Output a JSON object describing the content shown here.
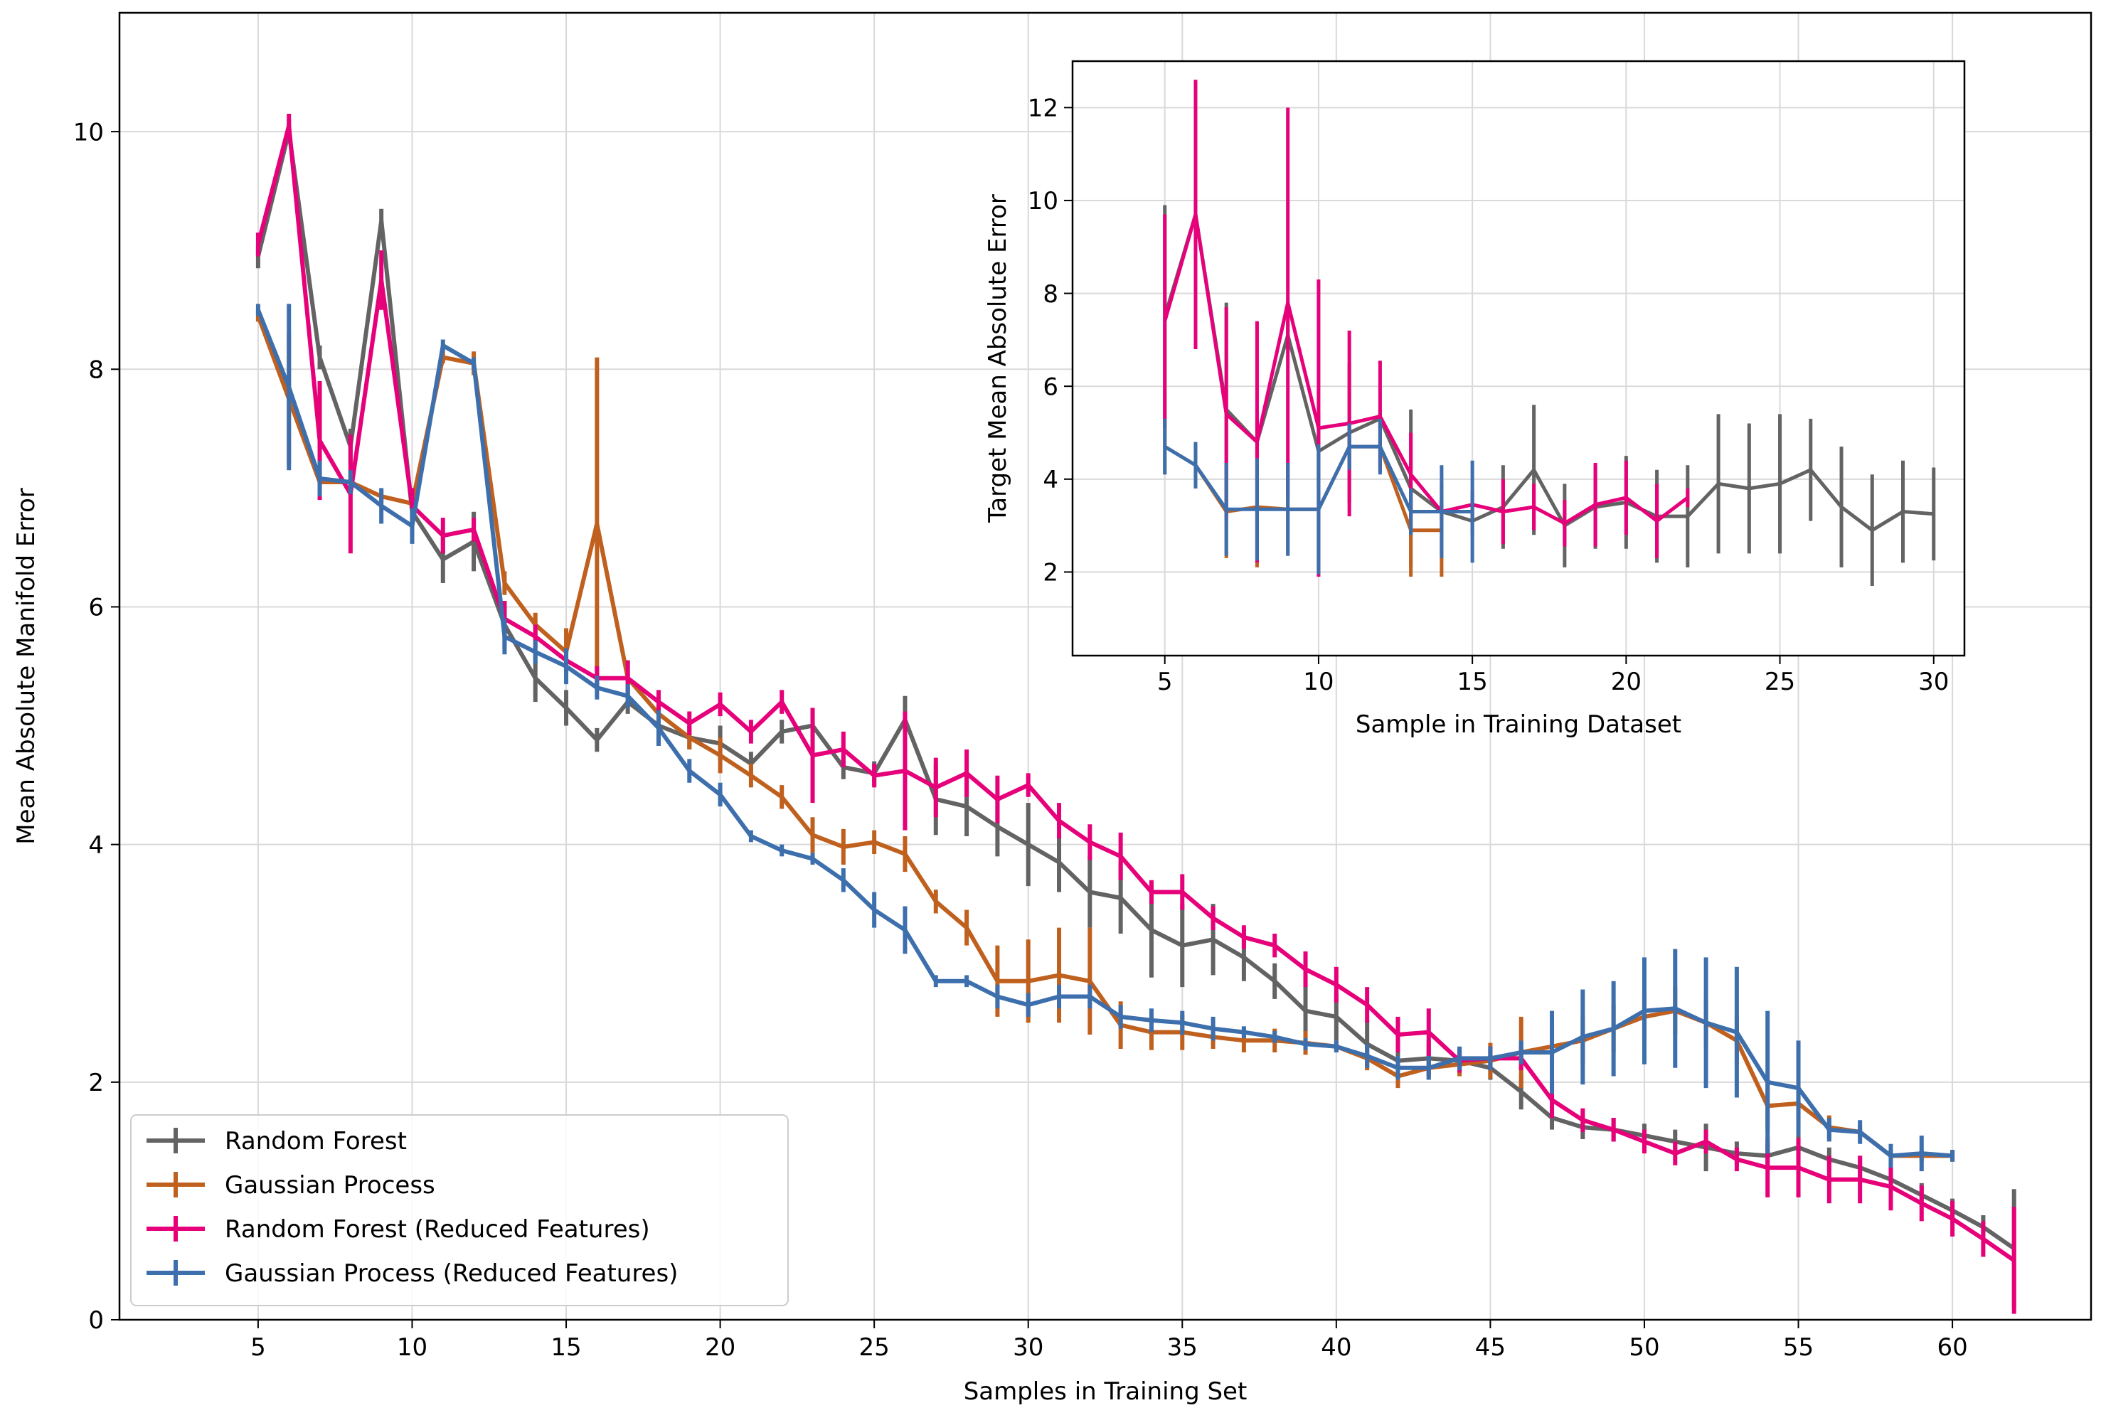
{
  "chart_data": [
    {
      "type": "line",
      "title": "",
      "xlabel": "Samples in Training Set",
      "ylabel": "Mean Absolute Manifold Error",
      "xlim": [
        0.5,
        64.5
      ],
      "ylim": [
        0,
        11
      ],
      "xticks": [
        5,
        10,
        15,
        20,
        25,
        30,
        35,
        40,
        45,
        50,
        55,
        60
      ],
      "yticks": [
        0,
        2,
        4,
        6,
        8,
        10
      ],
      "grid": true,
      "legend_position": "bottom-left",
      "series": [
        {
          "name": "Random Forest",
          "color": "#636363",
          "x": [
            5,
            6,
            7,
            8,
            9,
            10,
            11,
            12,
            13,
            14,
            15,
            16,
            17,
            18,
            19,
            20,
            21,
            22,
            23,
            24,
            25,
            26,
            27,
            28,
            29,
            30,
            31,
            32,
            33,
            34,
            35,
            36,
            37,
            38,
            39,
            40,
            41,
            42,
            43,
            44,
            45,
            46,
            47,
            48,
            49,
            50,
            51,
            52,
            53,
            54,
            55,
            56,
            57,
            58,
            59,
            60,
            61,
            62
          ],
          "y": [
            8.95,
            10.0,
            8.1,
            7.35,
            9.25,
            6.8,
            6.4,
            6.55,
            5.85,
            5.4,
            5.15,
            4.88,
            5.2,
            5.0,
            4.9,
            4.85,
            4.68,
            4.95,
            5.0,
            4.65,
            4.6,
            5.05,
            4.38,
            4.32,
            4.15,
            4.0,
            3.85,
            3.6,
            3.55,
            3.28,
            3.15,
            3.2,
            3.05,
            2.85,
            2.6,
            2.55,
            2.32,
            2.18,
            2.2,
            2.18,
            2.12,
            1.92,
            1.7,
            1.62,
            1.6,
            1.55,
            1.5,
            1.45,
            1.4,
            1.38,
            1.45,
            1.35,
            1.28,
            1.18,
            1.05,
            0.92,
            0.78,
            0.6
          ],
          "err": [
            0.1,
            0.1,
            0.1,
            0.15,
            0.1,
            0.2,
            0.2,
            0.25,
            0.2,
            0.2,
            0.15,
            0.1,
            0.1,
            0.15,
            0.1,
            0.15,
            0.1,
            0.1,
            0.15,
            0.1,
            0.1,
            0.2,
            0.3,
            0.25,
            0.25,
            0.35,
            0.25,
            0.3,
            0.3,
            0.4,
            0.35,
            0.3,
            0.2,
            0.15,
            0.3,
            0.2,
            0.2,
            0.15,
            0.15,
            0.1,
            0.1,
            0.15,
            0.1,
            0.1,
            0.1,
            0.1,
            0.1,
            0.2,
            0.1,
            0.1,
            0.1,
            0.1,
            0.1,
            0.1,
            0.1,
            0.1,
            0.1,
            0.5
          ]
        },
        {
          "name": "Gaussian Process",
          "color": "#c0601e",
          "x": [
            5,
            6,
            7,
            8,
            9,
            10,
            11,
            12,
            13,
            14,
            15,
            16,
            17,
            18,
            19,
            20,
            21,
            22,
            23,
            24,
            25,
            26,
            27,
            28,
            29,
            30,
            31,
            32,
            33,
            34,
            35,
            36,
            37,
            38,
            39,
            40,
            41,
            42,
            43,
            44,
            45,
            46,
            47,
            48,
            49,
            50,
            51,
            52,
            53,
            54,
            55,
            56,
            57,
            58,
            59,
            60
          ],
          "y": [
            8.45,
            7.75,
            7.05,
            7.05,
            6.93,
            6.87,
            8.1,
            8.05,
            6.2,
            5.85,
            5.62,
            6.7,
            5.4,
            5.1,
            4.9,
            4.75,
            4.58,
            4.4,
            4.08,
            3.98,
            4.02,
            3.92,
            3.52,
            3.3,
            2.85,
            2.85,
            2.9,
            2.85,
            2.48,
            2.42,
            2.42,
            2.38,
            2.35,
            2.35,
            2.33,
            2.3,
            2.2,
            2.05,
            2.12,
            2.15,
            2.18,
            2.25,
            2.3,
            2.35,
            2.45,
            2.55,
            2.6,
            2.5,
            2.35,
            1.8,
            1.82,
            1.62,
            1.58,
            1.38,
            1.38,
            1.38
          ],
          "err": [
            0.05,
            0.55,
            0.1,
            0.1,
            0.05,
            0.1,
            0.05,
            0.1,
            0.1,
            0.1,
            0.2,
            1.4,
            0.15,
            0.1,
            0.1,
            0.15,
            0.1,
            0.1,
            0.15,
            0.15,
            0.1,
            0.15,
            0.1,
            0.15,
            0.3,
            0.35,
            0.4,
            0.45,
            0.2,
            0.15,
            0.15,
            0.1,
            0.1,
            0.1,
            0.1,
            0.05,
            0.1,
            0.1,
            0.1,
            0.1,
            0.15,
            0.3,
            0.15,
            0.2,
            0.2,
            0.2,
            0.2,
            0.2,
            0.2,
            0.2,
            0.15,
            0.1,
            0.05,
            0.05,
            0.05,
            0.05
          ]
        },
        {
          "name": "Random Forest (Reduced Features)",
          "color": "#e6007a",
          "x": [
            5,
            6,
            7,
            8,
            9,
            10,
            11,
            12,
            13,
            14,
            15,
            16,
            17,
            18,
            19,
            20,
            21,
            22,
            23,
            24,
            25,
            26,
            27,
            28,
            29,
            30,
            31,
            32,
            33,
            34,
            35,
            36,
            37,
            38,
            39,
            40,
            41,
            42,
            43,
            44,
            45,
            46,
            47,
            48,
            49,
            50,
            51,
            52,
            53,
            54,
            55,
            56,
            57,
            58,
            59,
            60,
            61,
            62
          ],
          "y": [
            9.05,
            10.05,
            7.4,
            6.95,
            8.75,
            6.85,
            6.6,
            6.65,
            5.9,
            5.75,
            5.55,
            5.4,
            5.4,
            5.2,
            5.02,
            5.18,
            4.95,
            5.2,
            4.75,
            4.8,
            4.58,
            4.62,
            4.48,
            4.6,
            4.38,
            4.5,
            4.2,
            4.02,
            3.9,
            3.6,
            3.6,
            3.38,
            3.22,
            3.15,
            2.95,
            2.82,
            2.65,
            2.4,
            2.42,
            2.18,
            2.2,
            2.2,
            1.85,
            1.68,
            1.6,
            1.5,
            1.4,
            1.5,
            1.35,
            1.28,
            1.28,
            1.18,
            1.18,
            1.12,
            0.98,
            0.85,
            0.68,
            0.5
          ],
          "err": [
            0.1,
            0.1,
            0.5,
            0.5,
            0.25,
            0.15,
            0.15,
            0.1,
            0.15,
            0.1,
            0.1,
            0.1,
            0.15,
            0.1,
            0.1,
            0.1,
            0.1,
            0.1,
            0.4,
            0.15,
            0.1,
            0.5,
            0.25,
            0.2,
            0.2,
            0.1,
            0.15,
            0.15,
            0.2,
            0.1,
            0.15,
            0.1,
            0.1,
            0.1,
            0.15,
            0.15,
            0.15,
            0.15,
            0.2,
            0.1,
            0.1,
            0.1,
            0.15,
            0.1,
            0.1,
            0.1,
            0.1,
            0.1,
            0.1,
            0.25,
            0.25,
            0.2,
            0.2,
            0.2,
            0.15,
            0.15,
            0.15,
            0.45
          ]
        },
        {
          "name": "Gaussian Process (Reduced Features)",
          "color": "#3d6fad",
          "x": [
            5,
            6,
            7,
            8,
            9,
            10,
            11,
            12,
            13,
            14,
            15,
            16,
            17,
            18,
            19,
            20,
            21,
            22,
            23,
            24,
            25,
            26,
            27,
            28,
            29,
            30,
            31,
            32,
            33,
            34,
            35,
            36,
            37,
            38,
            39,
            40,
            41,
            42,
            43,
            44,
            45,
            46,
            47,
            48,
            49,
            50,
            51,
            52,
            53,
            54,
            55,
            56,
            57,
            58,
            59,
            60
          ],
          "y": [
            8.5,
            7.85,
            7.08,
            7.05,
            6.85,
            6.68,
            8.2,
            8.05,
            5.75,
            5.62,
            5.5,
            5.32,
            5.25,
            4.98,
            4.62,
            4.42,
            4.07,
            3.95,
            3.88,
            3.7,
            3.45,
            3.28,
            2.85,
            2.85,
            2.72,
            2.65,
            2.72,
            2.72,
            2.55,
            2.52,
            2.5,
            2.45,
            2.42,
            2.38,
            2.32,
            2.3,
            2.22,
            2.12,
            2.12,
            2.2,
            2.2,
            2.25,
            2.25,
            2.38,
            2.45,
            2.6,
            2.62,
            2.5,
            2.42,
            2.0,
            1.95,
            1.6,
            1.58,
            1.38,
            1.4,
            1.38
          ],
          "err": [
            0.05,
            0.7,
            0.15,
            0.1,
            0.15,
            0.15,
            0.05,
            0.05,
            0.15,
            0.1,
            0.15,
            0.1,
            0.1,
            0.15,
            0.1,
            0.1,
            0.05,
            0.05,
            0.05,
            0.1,
            0.15,
            0.2,
            0.05,
            0.05,
            0.1,
            0.1,
            0.1,
            0.1,
            0.1,
            0.1,
            0.1,
            0.1,
            0.05,
            0.05,
            0.05,
            0.05,
            0.1,
            0.1,
            0.1,
            0.1,
            0.1,
            0.1,
            0.35,
            0.4,
            0.4,
            0.45,
            0.5,
            0.55,
            0.55,
            0.6,
            0.4,
            0.1,
            0.1,
            0.1,
            0.15,
            0.05
          ]
        }
      ]
    },
    {
      "type": "line",
      "title": "",
      "xlabel": "Sample in Training Dataset",
      "ylabel": "Target Mean Absolute Error",
      "xlim": [
        2,
        31
      ],
      "ylim": [
        0.2,
        13.0
      ],
      "xticks": [
        5,
        10,
        15,
        20,
        25,
        30
      ],
      "yticks": [
        2,
        4,
        6,
        8,
        10,
        12
      ],
      "grid": true,
      "series": [
        {
          "name": "Random Forest",
          "color": "#636363",
          "x": [
            5,
            6,
            7,
            8,
            9,
            10,
            11,
            12,
            13,
            14,
            15,
            16,
            17,
            18,
            19,
            20,
            21,
            22,
            23,
            24,
            25,
            26,
            27,
            28,
            29,
            30
          ],
          "y": [
            7.5,
            9.7,
            5.5,
            4.8,
            7.1,
            4.6,
            5.0,
            5.3,
            3.8,
            3.3,
            3.1,
            3.4,
            4.2,
            3.0,
            3.4,
            3.5,
            3.2,
            3.2,
            3.9,
            3.8,
            3.9,
            4.2,
            3.4,
            2.9,
            3.3,
            3.25
          ],
          "err": [
            2.4,
            0.3,
            2.3,
            0.5,
            0.3,
            0.8,
            1.5,
            0.2,
            1.7,
            0.2,
            0.3,
            0.9,
            1.4,
            0.9,
            0.9,
            1.0,
            1.0,
            1.1,
            1.5,
            1.4,
            1.5,
            1.1,
            1.3,
            1.2,
            1.1,
            1.0
          ]
        },
        {
          "name": "Gaussian Process",
          "color": "#c0601e",
          "x": [
            5,
            6,
            7,
            8,
            9,
            10,
            11,
            12,
            13,
            14
          ],
          "y": [
            4.7,
            4.3,
            3.3,
            3.4,
            3.35,
            3.35,
            4.7,
            4.7,
            2.9,
            2.9
          ],
          "err": [
            0.6,
            0.5,
            1.0,
            1.3,
            1.0,
            1.3,
            0.5,
            0.5,
            1.0,
            1.0
          ]
        },
        {
          "name": "Random Forest (Reduced Features)",
          "color": "#e6007a",
          "x": [
            5,
            6,
            7,
            8,
            9,
            10,
            11,
            12,
            13,
            14,
            15,
            16,
            17,
            18,
            19,
            20,
            21,
            22
          ],
          "y": [
            7.4,
            9.7,
            5.4,
            4.8,
            7.8,
            5.1,
            5.2,
            5.35,
            4.1,
            3.3,
            3.45,
            3.3,
            3.4,
            3.05,
            3.45,
            3.6,
            3.1,
            3.6
          ],
          "err": [
            2.3,
            2.9,
            2.3,
            2.6,
            4.2,
            3.2,
            2.0,
            1.2,
            0.9,
            0.2,
            0.3,
            0.7,
            0.5,
            0.5,
            0.9,
            0.8,
            0.8,
            0.2
          ]
        },
        {
          "name": "Gaussian Process (Reduced Features)",
          "color": "#3d6fad",
          "x": [
            5,
            6,
            7,
            8,
            9,
            10,
            11,
            12,
            13,
            14,
            15
          ],
          "y": [
            4.7,
            4.3,
            3.35,
            3.35,
            3.35,
            3.35,
            4.7,
            4.7,
            3.3,
            3.3,
            3.3
          ],
          "err": [
            0.6,
            0.5,
            1.0,
            1.1,
            1.0,
            1.4,
            0.5,
            0.6,
            0.5,
            1.0,
            1.1
          ]
        }
      ]
    }
  ]
}
